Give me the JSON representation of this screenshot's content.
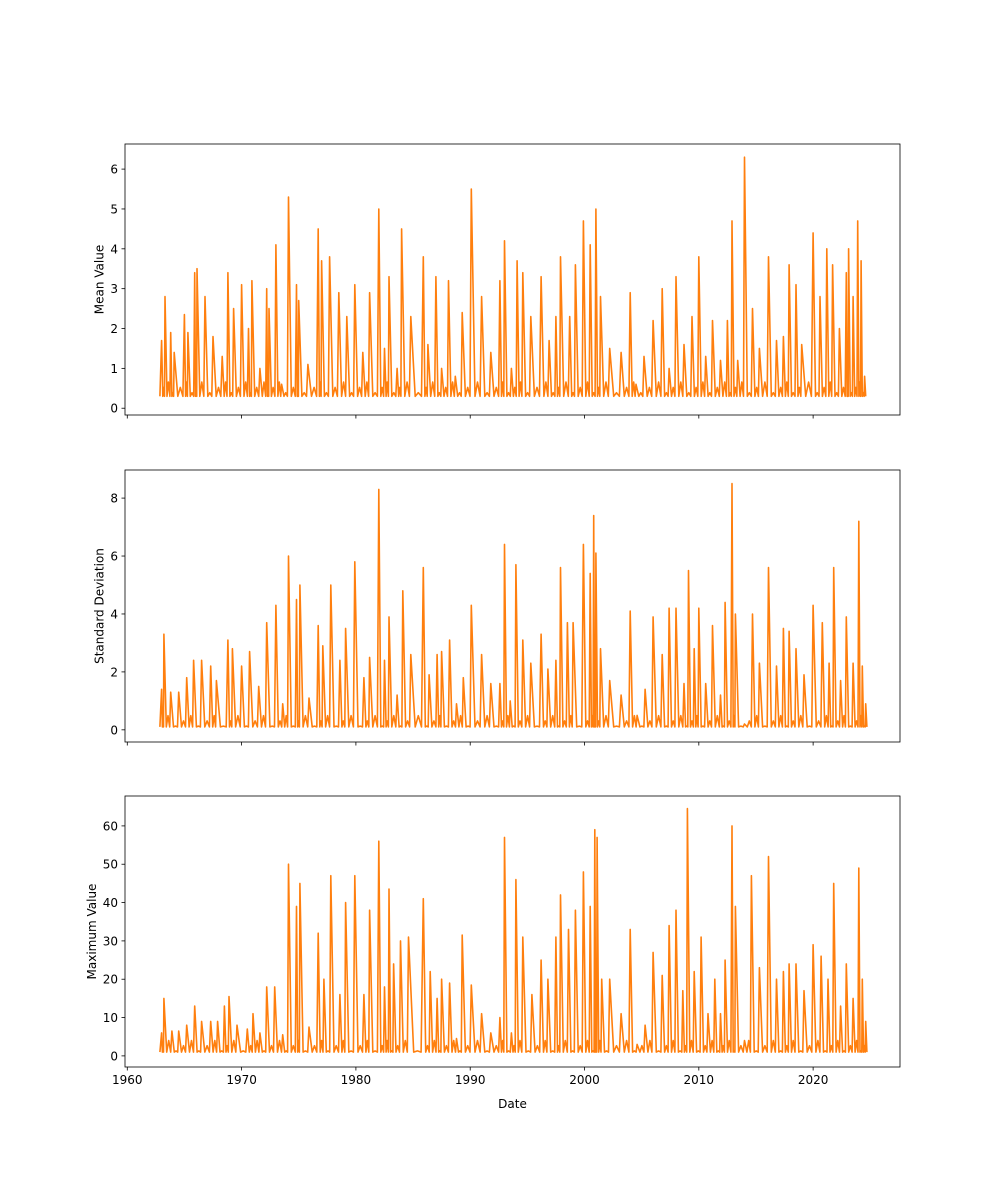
{
  "chart_data": [
    {
      "type": "line",
      "ylabel": "Mean Value",
      "xlabel": "",
      "xlim": [
        1959.8,
        2027.6
      ],
      "ylim": [
        -0.17,
        6.63
      ],
      "xticks": [
        1960,
        1970,
        1980,
        1990,
        2000,
        2010,
        2020
      ],
      "show_xtick_labels": false,
      "yticks": [
        0,
        1,
        2,
        3,
        4,
        5,
        6
      ],
      "color": "#ff7f0e",
      "baseline": 0.3,
      "peaks": [
        [
          1963.0,
          1.7
        ],
        [
          1963.3,
          2.8
        ],
        [
          1963.8,
          1.9
        ],
        [
          1964.1,
          1.4
        ],
        [
          1965.0,
          2.35
        ],
        [
          1965.3,
          1.9
        ],
        [
          1965.9,
          3.4
        ],
        [
          1966.1,
          3.5
        ],
        [
          1966.8,
          2.8
        ],
        [
          1967.5,
          1.8
        ],
        [
          1968.3,
          1.3
        ],
        [
          1968.8,
          3.4
        ],
        [
          1969.3,
          2.5
        ],
        [
          1970.0,
          3.1
        ],
        [
          1970.6,
          2.0
        ],
        [
          1970.9,
          3.2
        ],
        [
          1971.6,
          1.0
        ],
        [
          1972.2,
          3.0
        ],
        [
          1972.4,
          2.5
        ],
        [
          1973.0,
          4.1
        ],
        [
          1973.5,
          0.6
        ],
        [
          1974.1,
          5.3
        ],
        [
          1974.8,
          3.1
        ],
        [
          1975.0,
          2.7
        ],
        [
          1975.8,
          1.1
        ],
        [
          1976.7,
          4.5
        ],
        [
          1977.0,
          3.7
        ],
        [
          1977.7,
          3.8
        ],
        [
          1978.5,
          2.9
        ],
        [
          1979.2,
          2.3
        ],
        [
          1979.9,
          3.1
        ],
        [
          1980.6,
          1.4
        ],
        [
          1981.2,
          2.9
        ],
        [
          1982.0,
          5.0
        ],
        [
          1982.5,
          1.5
        ],
        [
          1982.9,
          3.3
        ],
        [
          1983.6,
          1.0
        ],
        [
          1984.0,
          4.5
        ],
        [
          1984.8,
          2.3
        ],
        [
          1985.9,
          3.8
        ],
        [
          1986.3,
          1.6
        ],
        [
          1987.0,
          3.3
        ],
        [
          1987.5,
          1.0
        ],
        [
          1988.1,
          3.2
        ],
        [
          1988.7,
          0.8
        ],
        [
          1989.3,
          2.4
        ],
        [
          1990.1,
          5.5
        ],
        [
          1991.0,
          2.8
        ],
        [
          1991.8,
          1.4
        ],
        [
          1992.6,
          3.2
        ],
        [
          1993.0,
          4.2
        ],
        [
          1993.6,
          1.0
        ],
        [
          1994.1,
          3.7
        ],
        [
          1994.6,
          3.4
        ],
        [
          1995.3,
          2.3
        ],
        [
          1996.2,
          3.3
        ],
        [
          1996.9,
          1.7
        ],
        [
          1997.5,
          2.3
        ],
        [
          1997.9,
          3.8
        ],
        [
          1998.7,
          2.3
        ],
        [
          1999.2,
          3.6
        ],
        [
          1999.9,
          4.7
        ],
        [
          2000.5,
          4.1
        ],
        [
          2001.0,
          5.0
        ],
        [
          2001.4,
          2.8
        ],
        [
          2002.2,
          1.5
        ],
        [
          2003.2,
          1.4
        ],
        [
          2004.0,
          2.9
        ],
        [
          2004.5,
          0.6
        ],
        [
          2005.2,
          1.3
        ],
        [
          2006.0,
          2.2
        ],
        [
          2006.8,
          3.0
        ],
        [
          2007.4,
          1.0
        ],
        [
          2008.0,
          3.3
        ],
        [
          2008.7,
          1.6
        ],
        [
          2009.4,
          2.3
        ],
        [
          2010.0,
          3.8
        ],
        [
          2010.6,
          1.3
        ],
        [
          2011.2,
          2.2
        ],
        [
          2011.9,
          1.2
        ],
        [
          2012.5,
          2.2
        ],
        [
          2012.9,
          4.7
        ],
        [
          2013.4,
          1.2
        ],
        [
          2014.0,
          6.3
        ],
        [
          2014.7,
          2.5
        ],
        [
          2015.3,
          1.5
        ],
        [
          2016.1,
          3.8
        ],
        [
          2016.8,
          1.7
        ],
        [
          2017.4,
          1.8
        ],
        [
          2017.9,
          3.6
        ],
        [
          2018.5,
          3.1
        ],
        [
          2019.0,
          1.6
        ],
        [
          2020.0,
          4.4
        ],
        [
          2020.6,
          2.8
        ],
        [
          2021.2,
          4.0
        ],
        [
          2021.7,
          3.6
        ],
        [
          2022.3,
          2.0
        ],
        [
          2022.9,
          3.4
        ],
        [
          2023.1,
          4.0
        ],
        [
          2023.5,
          2.8
        ],
        [
          2023.9,
          4.7
        ],
        [
          2024.2,
          3.7
        ],
        [
          2024.5,
          0.8
        ]
      ]
    },
    {
      "type": "line",
      "ylabel": "Standard Deviation",
      "xlabel": "",
      "xlim": [
        1959.8,
        2027.6
      ],
      "ylim": [
        -0.42,
        8.97
      ],
      "xticks": [
        1960,
        1970,
        1980,
        1990,
        2000,
        2010,
        2020
      ],
      "show_xtick_labels": false,
      "yticks": [
        0,
        2,
        4,
        6,
        8
      ],
      "color": "#ff7f0e",
      "baseline": 0.1,
      "peaks": [
        [
          1963.0,
          1.4
        ],
        [
          1963.2,
          3.3
        ],
        [
          1963.8,
          1.3
        ],
        [
          1964.5,
          1.3
        ],
        [
          1965.2,
          1.8
        ],
        [
          1965.8,
          2.4
        ],
        [
          1966.5,
          2.4
        ],
        [
          1967.3,
          2.2
        ],
        [
          1967.8,
          1.7
        ],
        [
          1968.8,
          3.1
        ],
        [
          1969.2,
          2.8
        ],
        [
          1970.0,
          2.2
        ],
        [
          1970.7,
          2.7
        ],
        [
          1971.5,
          1.5
        ],
        [
          1972.2,
          3.7
        ],
        [
          1973.0,
          4.3
        ],
        [
          1973.6,
          0.9
        ],
        [
          1974.1,
          6.0
        ],
        [
          1974.8,
          4.5
        ],
        [
          1975.1,
          5.0
        ],
        [
          1975.9,
          1.1
        ],
        [
          1976.7,
          3.6
        ],
        [
          1977.1,
          2.9
        ],
        [
          1977.8,
          5.0
        ],
        [
          1978.6,
          2.4
        ],
        [
          1979.1,
          3.5
        ],
        [
          1979.9,
          5.8
        ],
        [
          1980.7,
          1.8
        ],
        [
          1981.2,
          2.5
        ],
        [
          1982.0,
          8.3
        ],
        [
          1982.5,
          2.4
        ],
        [
          1982.9,
          3.9
        ],
        [
          1983.6,
          1.2
        ],
        [
          1984.1,
          4.8
        ],
        [
          1984.8,
          2.6
        ],
        [
          1985.9,
          5.6
        ],
        [
          1986.4,
          1.9
        ],
        [
          1987.1,
          2.6
        ],
        [
          1987.5,
          2.7
        ],
        [
          1988.2,
          3.1
        ],
        [
          1988.8,
          0.9
        ],
        [
          1989.4,
          1.8
        ],
        [
          1990.1,
          4.3
        ],
        [
          1991.0,
          2.6
        ],
        [
          1991.8,
          1.6
        ],
        [
          1992.6,
          1.6
        ],
        [
          1993.0,
          6.4
        ],
        [
          1993.5,
          1.0
        ],
        [
          1994.0,
          5.7
        ],
        [
          1994.6,
          3.1
        ],
        [
          1995.3,
          2.3
        ],
        [
          1996.2,
          3.3
        ],
        [
          1996.8,
          2.1
        ],
        [
          1997.5,
          2.4
        ],
        [
          1997.9,
          5.6
        ],
        [
          1998.5,
          3.7
        ],
        [
          1999.0,
          3.7
        ],
        [
          1999.9,
          6.4
        ],
        [
          2000.5,
          5.4
        ],
        [
          2000.8,
          7.4
        ],
        [
          2001.0,
          6.1
        ],
        [
          2001.4,
          2.8
        ],
        [
          2002.2,
          1.7
        ],
        [
          2003.2,
          1.2
        ],
        [
          2004.0,
          4.1
        ],
        [
          2004.6,
          0.5
        ],
        [
          2005.3,
          1.4
        ],
        [
          2006.0,
          3.9
        ],
        [
          2006.8,
          2.6
        ],
        [
          2007.4,
          4.2
        ],
        [
          2008.0,
          4.2
        ],
        [
          2008.7,
          1.6
        ],
        [
          2009.1,
          5.5
        ],
        [
          2009.6,
          2.8
        ],
        [
          2010.0,
          4.2
        ],
        [
          2010.6,
          1.6
        ],
        [
          2011.2,
          3.6
        ],
        [
          2011.9,
          1.2
        ],
        [
          2012.3,
          4.4
        ],
        [
          2012.9,
          8.5
        ],
        [
          2013.2,
          4.0
        ],
        [
          2014.0,
          0.2
        ],
        [
          2014.7,
          4.0
        ],
        [
          2015.3,
          2.3
        ],
        [
          2016.1,
          5.6
        ],
        [
          2016.8,
          2.2
        ],
        [
          2017.4,
          3.5
        ],
        [
          2017.9,
          3.4
        ],
        [
          2018.5,
          2.8
        ],
        [
          2019.2,
          1.9
        ],
        [
          2020.0,
          4.3
        ],
        [
          2020.8,
          3.7
        ],
        [
          2021.4,
          2.3
        ],
        [
          2021.8,
          5.6
        ],
        [
          2022.4,
          1.7
        ],
        [
          2022.9,
          3.9
        ],
        [
          2023.5,
          2.3
        ],
        [
          2024.0,
          7.2
        ],
        [
          2024.3,
          2.2
        ],
        [
          2024.6,
          0.9
        ]
      ]
    },
    {
      "type": "line",
      "ylabel": "Maximum Value",
      "xlabel": "Date",
      "xlim": [
        1959.8,
        2027.6
      ],
      "ylim": [
        -2.9,
        67.8
      ],
      "xticks": [
        1960,
        1970,
        1980,
        1990,
        2000,
        2010,
        2020
      ],
      "show_xtick_labels": true,
      "yticks": [
        0,
        10,
        20,
        30,
        40,
        50,
        60
      ],
      "color": "#ff7f0e",
      "baseline": 1,
      "peaks": [
        [
          1963.0,
          6
        ],
        [
          1963.2,
          15
        ],
        [
          1963.9,
          6.5
        ],
        [
          1964.5,
          6.5
        ],
        [
          1965.2,
          8
        ],
        [
          1965.9,
          13
        ],
        [
          1966.5,
          9
        ],
        [
          1967.3,
          9
        ],
        [
          1967.9,
          9
        ],
        [
          1968.5,
          13
        ],
        [
          1968.9,
          15.5
        ],
        [
          1969.6,
          8
        ],
        [
          1970.5,
          7
        ],
        [
          1971.0,
          11
        ],
        [
          1971.6,
          6
        ],
        [
          1972.2,
          18
        ],
        [
          1972.9,
          18
        ],
        [
          1973.6,
          5.5
        ],
        [
          1974.1,
          50
        ],
        [
          1974.8,
          39
        ],
        [
          1975.1,
          45
        ],
        [
          1975.9,
          7.5
        ],
        [
          1976.7,
          32
        ],
        [
          1977.2,
          20
        ],
        [
          1977.8,
          47
        ],
        [
          1978.6,
          16
        ],
        [
          1979.1,
          40
        ],
        [
          1979.9,
          47
        ],
        [
          1980.7,
          16
        ],
        [
          1981.2,
          38
        ],
        [
          1982.0,
          56
        ],
        [
          1982.5,
          18
        ],
        [
          1982.9,
          43.5
        ],
        [
          1983.3,
          24
        ],
        [
          1983.9,
          30
        ],
        [
          1984.6,
          31
        ],
        [
          1985.9,
          41
        ],
        [
          1986.5,
          22
        ],
        [
          1987.1,
          15
        ],
        [
          1987.5,
          20
        ],
        [
          1988.2,
          19
        ],
        [
          1988.8,
          4.5
        ],
        [
          1989.3,
          31.5
        ],
        [
          1990.1,
          18.5
        ],
        [
          1991.0,
          11
        ],
        [
          1991.8,
          6
        ],
        [
          1992.6,
          10
        ],
        [
          1993.0,
          57
        ],
        [
          1993.6,
          6
        ],
        [
          1994.0,
          46
        ],
        [
          1994.6,
          31
        ],
        [
          1995.4,
          16
        ],
        [
          1996.2,
          25
        ],
        [
          1996.8,
          20
        ],
        [
          1997.5,
          31
        ],
        [
          1997.9,
          42
        ],
        [
          1998.6,
          33
        ],
        [
          1999.2,
          38
        ],
        [
          1999.9,
          48
        ],
        [
          2000.5,
          39
        ],
        [
          2000.9,
          59
        ],
        [
          2001.1,
          57
        ],
        [
          2001.5,
          20
        ],
        [
          2002.2,
          20
        ],
        [
          2003.2,
          11
        ],
        [
          2004.0,
          33
        ],
        [
          2004.6,
          3
        ],
        [
          2005.3,
          8
        ],
        [
          2006.0,
          27
        ],
        [
          2006.8,
          21
        ],
        [
          2007.4,
          34
        ],
        [
          2008.0,
          38
        ],
        [
          2008.6,
          17
        ],
        [
          2009.0,
          64.5
        ],
        [
          2009.6,
          22
        ],
        [
          2010.2,
          31
        ],
        [
          2010.8,
          11
        ],
        [
          2011.4,
          20
        ],
        [
          2011.9,
          11
        ],
        [
          2012.3,
          25
        ],
        [
          2012.9,
          60
        ],
        [
          2013.2,
          39
        ],
        [
          2014.0,
          4
        ],
        [
          2014.6,
          47
        ],
        [
          2015.3,
          23
        ],
        [
          2016.1,
          52
        ],
        [
          2016.8,
          20
        ],
        [
          2017.4,
          22
        ],
        [
          2017.9,
          24
        ],
        [
          2018.5,
          24
        ],
        [
          2019.2,
          17
        ],
        [
          2020.0,
          29
        ],
        [
          2020.7,
          26
        ],
        [
          2021.3,
          20
        ],
        [
          2021.8,
          45
        ],
        [
          2022.4,
          13
        ],
        [
          2022.9,
          24
        ],
        [
          2023.5,
          15
        ],
        [
          2024.0,
          49
        ],
        [
          2024.3,
          20
        ],
        [
          2024.6,
          9
        ]
      ]
    }
  ]
}
